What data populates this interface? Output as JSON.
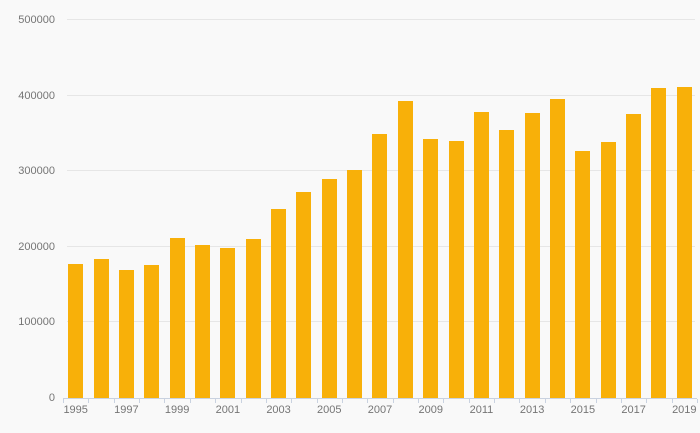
{
  "page": {
    "background": "#F9F9F9"
  },
  "chart_data": {
    "type": "bar",
    "title": "",
    "xlabel": "",
    "ylabel": "",
    "categories": [
      "1995",
      "1996",
      "1997",
      "1998",
      "1999",
      "2000",
      "2001",
      "2002",
      "2003",
      "2004",
      "2005",
      "2006",
      "2007",
      "2008",
      "2009",
      "2010",
      "2011",
      "2012",
      "2013",
      "2014",
      "2015",
      "2016",
      "2017",
      "2018",
      "2019"
    ],
    "values": [
      177000,
      184000,
      169000,
      176000,
      212000,
      202000,
      198000,
      210000,
      250000,
      273000,
      290000,
      302000,
      349000,
      393000,
      342000,
      340000,
      378000,
      355000,
      377000,
      396000,
      327000,
      338000,
      376000,
      410000,
      411000
    ],
    "ylim": [
      0,
      500000
    ],
    "yticks": [
      0,
      100000,
      200000,
      300000,
      400000,
      500000
    ],
    "ytick_labels": [
      "0",
      "100000",
      "200000",
      "300000",
      "400000",
      "500000"
    ],
    "x_visible_labels": [
      "1995",
      "1997",
      "1999",
      "2001",
      "2003",
      "2005",
      "2007",
      "2009",
      "2011",
      "2013",
      "2015",
      "2017",
      "2019"
    ],
    "x_label_every": 2,
    "grid": "horizontal",
    "legend": "none",
    "colors": {
      "bar": "#F8B009",
      "gridline": "#E6E6E6",
      "axis": "#C9D2E0",
      "tick_text": "#757575"
    }
  }
}
